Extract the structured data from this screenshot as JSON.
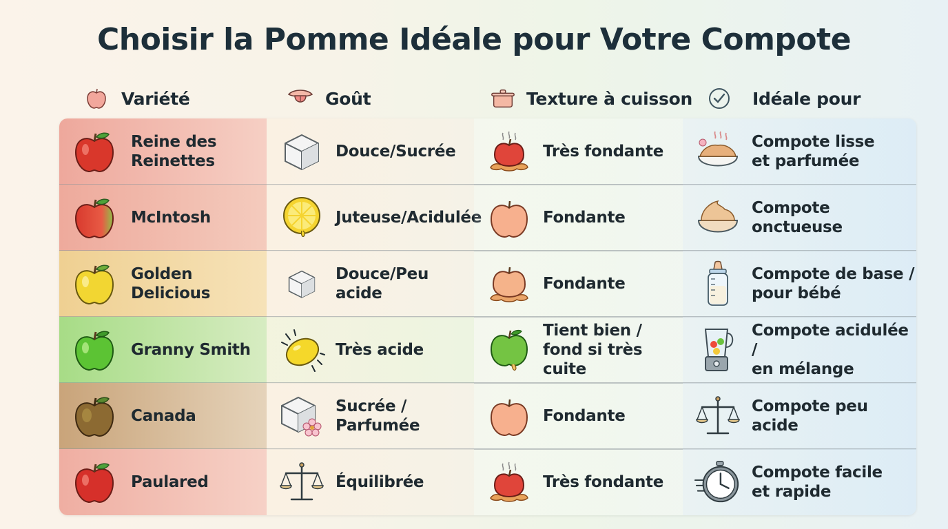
{
  "title": "Choisir la Pomme Idéale pour Votre Compote",
  "headers": [
    {
      "label": "Variété",
      "icon": "apple-icon"
    },
    {
      "label": "Goût",
      "icon": "tongue-icon"
    },
    {
      "label": "Texture à cuisson",
      "icon": "pot-icon"
    },
    {
      "label": "Idéale pour",
      "icon": "checkmark-icon"
    }
  ],
  "rows": [
    {
      "variety": "Reine des\nReinettes",
      "taste": "Douce/Sucrée",
      "texture": "Très fondante",
      "ideal": "Compote lisse\net parfumée",
      "row_color": "#f2c0b3",
      "apple_color": "#d9372b",
      "icons": [
        "red-apple-icon",
        "sugar-cube-icon",
        "melting-apple-icon",
        "fragrant-bowl-icon"
      ]
    },
    {
      "variety": "McIntosh",
      "taste": "Juteuse/Acidulée",
      "texture": "Fondante",
      "ideal": "Compote\nonctueuse",
      "row_color": "#f0c2b4",
      "apple_color": "#dc4a3a",
      "icons": [
        "red-green-apple-icon",
        "lemon-slice-icon",
        "apple-icon",
        "puree-bowl-icon"
      ]
    },
    {
      "variety": "Golden\nDelicious",
      "taste": "Douce/Peu acide",
      "texture": "Fondante",
      "ideal": "Compote de base /\npour bébé",
      "row_color": "#f3dba6",
      "apple_color": "#f0cf2f",
      "icons": [
        "yellow-apple-icon",
        "small-sugar-cube-icon",
        "melting-apple-icon",
        "baby-bottle-icon"
      ]
    },
    {
      "variety": "Granny Smith",
      "taste": "Très acide",
      "texture": "Tient bien /\nfond si très cuite",
      "ideal": "Compote acidulée /\nen mélange",
      "row_color": "#cde9b8",
      "apple_color": "#5cc334",
      "icons": [
        "green-apple-icon",
        "lemon-icon",
        "green-apple-drip-icon",
        "blender-icon"
      ]
    },
    {
      "variety": "Canada",
      "taste": "Sucrée /\nParfumée",
      "texture": "Fondante",
      "ideal": "Compote peu acide",
      "row_color": "#dcc8ae",
      "apple_color": "#8c6a32",
      "icons": [
        "russet-apple-icon",
        "sugar-cube-flower-icon",
        "apple-icon",
        "scale-icon"
      ]
    },
    {
      "variety": "Paulared",
      "taste": "Équilibrée",
      "texture": "Très fondante",
      "ideal": "Compote facile\net rapide",
      "row_color": "#f2c7bd",
      "apple_color": "#d6302a",
      "icons": [
        "red-apple-icon",
        "scale-icon",
        "melting-apple-icon",
        "stopwatch-icon"
      ]
    }
  ]
}
